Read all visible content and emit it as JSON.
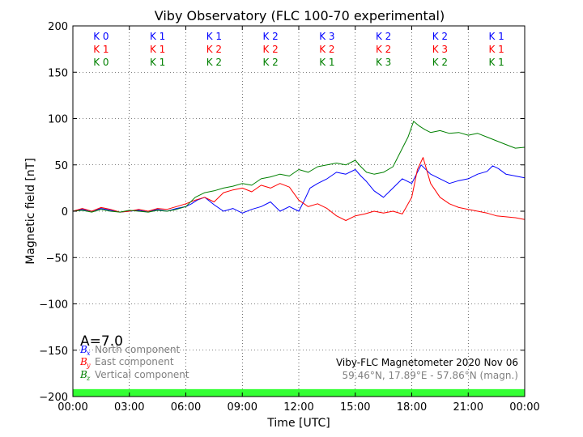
{
  "chart_data": {
    "type": "line",
    "title": "Viby Observatory (FLC 100-70 experimental)",
    "xlabel": "Time [UTC]",
    "ylabel": "Magnetic field [nT]",
    "xlim": [
      0,
      24
    ],
    "ylim": [
      -200,
      200
    ],
    "x_ticks": [
      0,
      3,
      6,
      9,
      12,
      15,
      18,
      21,
      24
    ],
    "x_tick_labels": [
      "00:00",
      "03:00",
      "06:00",
      "09:00",
      "12:00",
      "15:00",
      "18:00",
      "21:00",
      "00:00"
    ],
    "y_ticks": [
      -200,
      -150,
      -100,
      -50,
      0,
      50,
      100,
      150,
      200
    ],
    "y_tick_labels": [
      "−200",
      "−150",
      "−100",
      "−50",
      "0",
      "50",
      "100",
      "150",
      "200"
    ],
    "grid": true,
    "grid_style": "dotted",
    "k_index_rows": [
      {
        "color": "#0000ff",
        "labels": [
          "K 0",
          "K 1",
          "K 1",
          "K 2",
          "K 3",
          "K 2",
          "K 2",
          "K 1"
        ]
      },
      {
        "color": "#ff0000",
        "labels": [
          "K 1",
          "K 1",
          "K 2",
          "K 2",
          "K 2",
          "K 2",
          "K 3",
          "K 1"
        ]
      },
      {
        "color": "#008000",
        "labels": [
          "K 0",
          "K 1",
          "K 2",
          "K 2",
          "K 1",
          "K 3",
          "K 2",
          "K 1"
        ]
      }
    ],
    "a_index": "A=7.0",
    "legend": {
      "placement": "bottom-left",
      "entries": [
        {
          "symbol": "B",
          "subscript": "x",
          "label": "North component",
          "color": "#0000ff"
        },
        {
          "symbol": "B",
          "subscript": "y",
          "label": "East component",
          "color": "#ff0000"
        },
        {
          "symbol": "B",
          "subscript": "z",
          "label": "Vertical component",
          "color": "#008000"
        }
      ]
    },
    "info_line1": "Viby-FLC Magnetometer 2020 Nov 06",
    "info_line2": "59.46°N, 17.89°E - 57.86°N (magn.)",
    "status_bar": {
      "color": "#33ff33",
      "from": -200,
      "to": -192
    },
    "series": [
      {
        "name": "North component",
        "color": "#0000ff",
        "x": [
          0,
          0.5,
          1,
          1.5,
          2,
          2.5,
          3,
          3.5,
          4,
          4.5,
          5,
          5.5,
          6,
          6.3,
          6.6,
          7,
          7.5,
          8,
          8.5,
          9,
          9.5,
          10,
          10.5,
          11,
          11.5,
          12,
          12.3,
          12.6,
          13,
          13.5,
          14,
          14.5,
          15,
          15.3,
          15.6,
          16,
          16.5,
          17,
          17.5,
          18,
          18.5,
          19,
          19.5,
          20,
          20.5,
          21,
          21.5,
          22,
          22.3,
          22.6,
          23,
          23.5,
          24
        ],
        "y": [
          0,
          2,
          0,
          3,
          1,
          -1,
          0,
          1,
          -1,
          2,
          0,
          3,
          5,
          8,
          12,
          15,
          7,
          0,
          3,
          -2,
          2,
          5,
          10,
          0,
          5,
          0,
          12,
          25,
          30,
          35,
          42,
          40,
          45,
          38,
          32,
          22,
          15,
          25,
          35,
          30,
          50,
          40,
          35,
          30,
          33,
          35,
          40,
          43,
          49,
          46,
          40,
          38,
          36
        ]
      },
      {
        "name": "East component",
        "color": "#ff0000",
        "x": [
          0,
          0.5,
          1,
          1.5,
          2,
          2.5,
          3,
          3.5,
          4,
          4.5,
          5,
          5.5,
          6,
          6.5,
          7,
          7.5,
          8,
          8.5,
          9,
          9.5,
          10,
          10.5,
          11,
          11.5,
          12,
          12.5,
          13,
          13.5,
          14,
          14.5,
          15,
          15.5,
          16,
          16.5,
          17,
          17.5,
          18,
          18.3,
          18.6,
          19,
          19.5,
          20,
          20.5,
          21,
          21.5,
          22,
          22.5,
          23,
          23.5,
          24
        ],
        "y": [
          0,
          3,
          0,
          4,
          2,
          -1,
          0,
          2,
          0,
          3,
          2,
          5,
          8,
          12,
          15,
          10,
          20,
          23,
          25,
          21,
          28,
          25,
          30,
          26,
          12,
          5,
          8,
          3,
          -5,
          -10,
          -5,
          -3,
          0,
          -2,
          0,
          -3,
          15,
          45,
          58,
          30,
          15,
          8,
          4,
          2,
          0,
          -2,
          -5,
          -6,
          -7,
          -9
        ]
      },
      {
        "name": "Vertical component",
        "color": "#008000",
        "x": [
          0,
          0.5,
          1,
          1.5,
          2,
          2.5,
          3,
          3.5,
          4,
          4.5,
          5,
          5.5,
          6,
          6.5,
          7,
          7.5,
          8,
          8.5,
          9,
          9.5,
          10,
          10.5,
          11,
          11.5,
          12,
          12.5,
          13,
          13.5,
          14,
          14.5,
          15,
          15.3,
          15.6,
          16,
          16.5,
          17,
          17.5,
          17.8,
          18.1,
          18.4,
          18.7,
          19,
          19.5,
          20,
          20.5,
          21,
          21.5,
          22,
          22.5,
          23,
          23.5,
          24
        ],
        "y": [
          0,
          1,
          -1,
          2,
          0,
          -1,
          1,
          0,
          -1,
          1,
          0,
          2,
          5,
          15,
          20,
          22,
          25,
          27,
          30,
          28,
          35,
          37,
          40,
          38,
          45,
          42,
          48,
          50,
          52,
          50,
          55,
          48,
          42,
          40,
          42,
          48,
          68,
          80,
          97,
          92,
          88,
          85,
          87,
          84,
          85,
          82,
          84,
          80,
          76,
          72,
          68,
          69
        ]
      }
    ]
  }
}
